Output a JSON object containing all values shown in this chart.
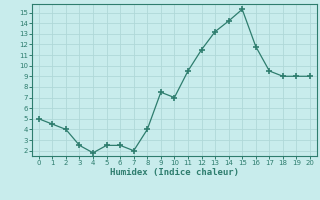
{
  "x": [
    0,
    1,
    2,
    3,
    4,
    5,
    6,
    7,
    8,
    9,
    10,
    11,
    12,
    13,
    14,
    15,
    16,
    17,
    18,
    19,
    20
  ],
  "y": [
    5.0,
    4.5,
    4.0,
    2.5,
    1.8,
    2.5,
    2.5,
    2.0,
    4.0,
    7.5,
    7.0,
    9.5,
    11.5,
    13.2,
    14.2,
    15.3,
    11.8,
    9.5,
    9.0,
    9.0,
    9.0
  ],
  "line_color": "#2e7d6e",
  "marker_color": "#2e7d6e",
  "bg_color": "#c8ecec",
  "grid_color": "#b0d8d8",
  "xlabel": "Humidex (Indice chaleur)",
  "xlabel_color": "#2e7d6e",
  "xlim": [
    -0.5,
    20.5
  ],
  "ylim": [
    1.5,
    15.8
  ],
  "yticks": [
    2,
    3,
    4,
    5,
    6,
    7,
    8,
    9,
    10,
    11,
    12,
    13,
    14,
    15
  ],
  "xticks": [
    0,
    1,
    2,
    3,
    4,
    5,
    6,
    7,
    8,
    9,
    10,
    11,
    12,
    13,
    14,
    15,
    16,
    17,
    18,
    19,
    20
  ]
}
